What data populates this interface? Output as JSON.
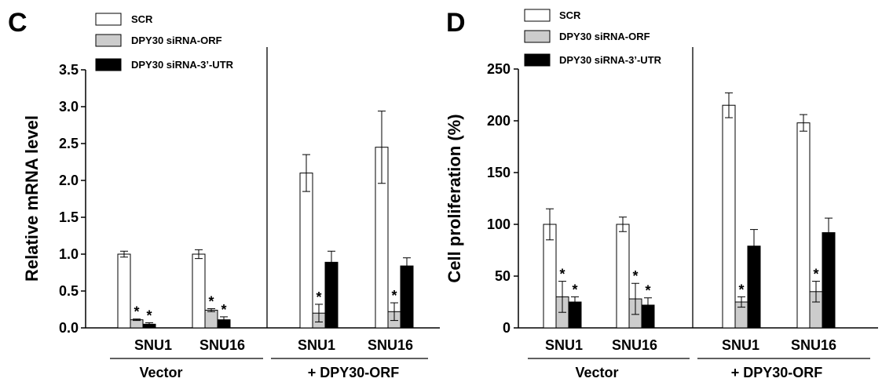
{
  "chart_data": [
    {
      "type": "bar",
      "panel_letter": "C",
      "ylabel": "Relative mRNA level",
      "ylim": [
        0,
        3.5
      ],
      "yticks": [
        "0.0",
        "0.5",
        "1.0",
        "1.5",
        "2.0",
        "2.5",
        "3.0",
        "3.5"
      ],
      "ytick_values": [
        0,
        0.5,
        1.0,
        1.5,
        2.0,
        2.5,
        3.0,
        3.5
      ],
      "categories": [
        "SNU1",
        "SNU16",
        "SNU1",
        "SNU16"
      ],
      "groups": [
        "Vector",
        "+ DPY30-ORF"
      ],
      "legend": [
        "SCR",
        "DPY30 siRNA-ORF",
        "DPY30 siRNA-3’-UTR"
      ],
      "series": [
        {
          "name": "SCR",
          "values": [
            1.0,
            1.0,
            2.1,
            2.45
          ],
          "errors": [
            0.04,
            0.06,
            0.25,
            0.49
          ],
          "stars": [
            false,
            false,
            false,
            false
          ]
        },
        {
          "name": "DPY30 siRNA-ORF",
          "values": [
            0.11,
            0.24,
            0.2,
            0.22
          ],
          "errors": [
            0.01,
            0.02,
            0.12,
            0.12
          ],
          "stars": [
            true,
            true,
            true,
            true
          ]
        },
        {
          "name": "DPY30 siRNA-3’-UTR",
          "values": [
            0.05,
            0.11,
            0.89,
            0.84
          ],
          "errors": [
            0.02,
            0.04,
            0.15,
            0.11
          ],
          "stars": [
            true,
            true,
            false,
            false
          ]
        }
      ]
    },
    {
      "type": "bar",
      "panel_letter": "D",
      "ylabel": "Cell proliferation (%)",
      "ylim": [
        0,
        250
      ],
      "yticks": [
        "0",
        "50",
        "100",
        "150",
        "200",
        "250"
      ],
      "ytick_values": [
        0,
        50,
        100,
        150,
        200,
        250
      ],
      "categories": [
        "SNU1",
        "SNU16",
        "SNU1",
        "SNU16"
      ],
      "groups": [
        "Vector",
        "+ DPY30-ORF"
      ],
      "legend": [
        "SCR",
        "DPY30 siRNA-ORF",
        "DPY30 siRNA-3’-UTR"
      ],
      "series": [
        {
          "name": "SCR",
          "values": [
            100,
            100,
            215,
            198
          ],
          "errors": [
            15,
            7,
            12,
            8
          ],
          "stars": [
            false,
            false,
            false,
            false
          ]
        },
        {
          "name": "DPY30 siRNA-ORF",
          "values": [
            30,
            28,
            25,
            35
          ],
          "errors": [
            15,
            15,
            5,
            10
          ],
          "stars": [
            true,
            true,
            true,
            true
          ]
        },
        {
          "name": "DPY30 siRNA-3’-UTR",
          "values": [
            25,
            22,
            79,
            92
          ],
          "errors": [
            5,
            7,
            16,
            14
          ],
          "stars": [
            true,
            true,
            false,
            false
          ]
        }
      ]
    }
  ],
  "colors": {
    "scr": "#ffffff",
    "orf": "#cccccc",
    "utr": "#000000",
    "axis": "#000000"
  }
}
